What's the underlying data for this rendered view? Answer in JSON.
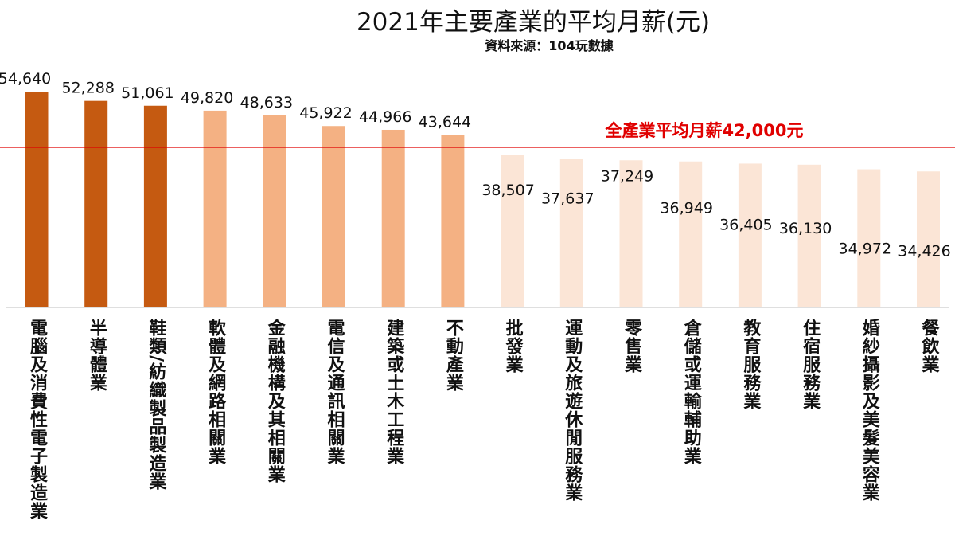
{
  "chart_data": {
    "type": "bar",
    "title": "2021年主要產業的平均月薪(元)",
    "subtitle": "資料來源：104玩數據",
    "categories": [
      "電腦及消費性電子製造業",
      "半導體業",
      "鞋類/紡織製品製造業",
      "軟體及網路相關業",
      "金融機構及其相關業",
      "電信及通訊相關業",
      "建築或土木工程業",
      "不動產業",
      "批發業",
      "運動及旅遊休閒服務業",
      "零售業",
      "倉儲或運輸輔助業",
      "教育服務業",
      "住宿服務業",
      "婚紗攝影及美髮美容業",
      "餐飲業"
    ],
    "values": [
      54640,
      52288,
      51061,
      49820,
      48633,
      45922,
      44966,
      43644,
      38507,
      37637,
      37249,
      36949,
      36405,
      36130,
      34972,
      34426
    ],
    "value_labels": [
      "54,640",
      "52,288",
      "51,061",
      "49,820",
      "48,633",
      "45,922",
      "44,966",
      "43,644",
      "38,507",
      "37,637",
      "37,249",
      "36,949",
      "36,405",
      "36,130",
      "34,972",
      "34,426"
    ],
    "reference_line": {
      "value": 42000,
      "label": "全產業平均月薪42,000元",
      "color": "#e00000"
    },
    "bar_colors": {
      "top": "#C55A11",
      "above_average": "#F4B183",
      "below_average": "#FBE5D6"
    },
    "grid": false,
    "legend": "none"
  }
}
